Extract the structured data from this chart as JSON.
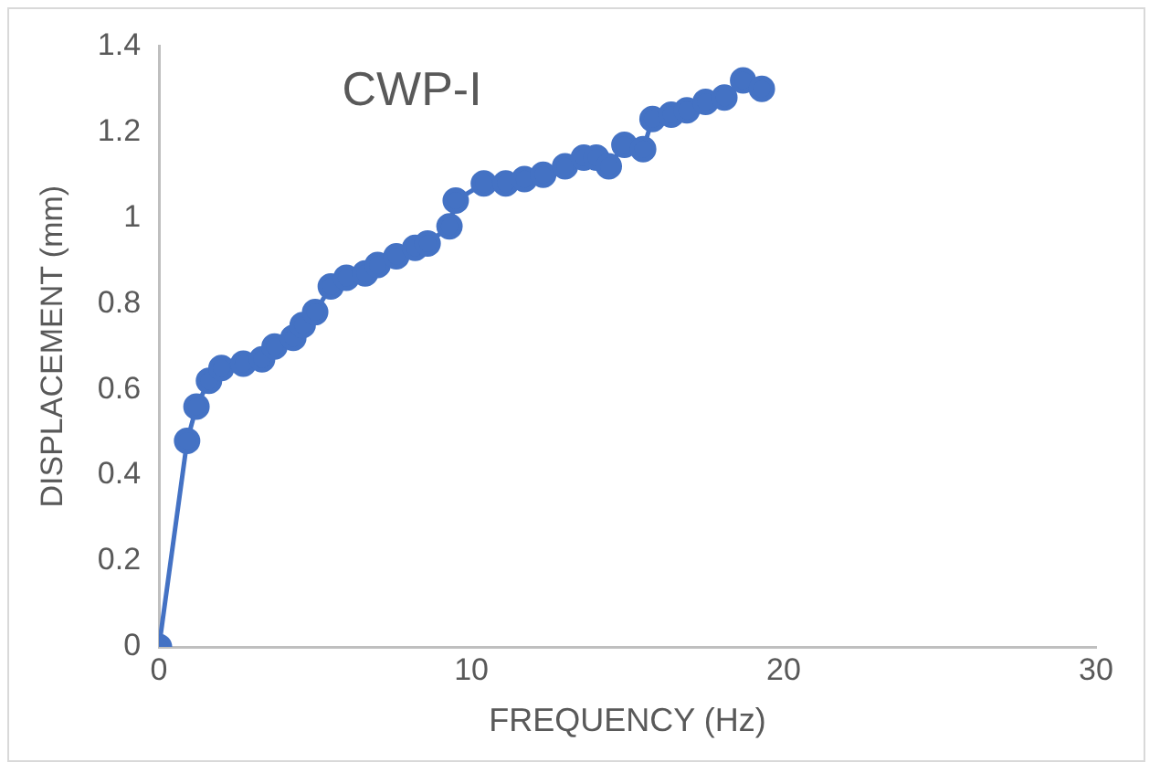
{
  "chart_data": {
    "type": "line",
    "title": "CWP-I",
    "xlabel": "FREQUENCY (Hz)",
    "ylabel": "DISPLACEMENT (mm)",
    "x": [
      0,
      0.9,
      1.2,
      1.6,
      2.0,
      2.7,
      3.3,
      3.7,
      4.3,
      4.6,
      5.0,
      5.5,
      6.0,
      6.6,
      7.0,
      7.6,
      8.2,
      8.6,
      9.3,
      9.5,
      10.4,
      11.1,
      11.7,
      12.3,
      13.0,
      13.6,
      14.0,
      14.4,
      14.9,
      15.5,
      15.8,
      16.4,
      16.9,
      17.5,
      18.1,
      18.7,
      19.3
    ],
    "series": [
      {
        "color": "#4472c4",
        "values": [
          0,
          0.48,
          0.56,
          0.62,
          0.65,
          0.66,
          0.67,
          0.7,
          0.72,
          0.75,
          0.78,
          0.84,
          0.86,
          0.87,
          0.89,
          0.91,
          0.93,
          0.94,
          0.98,
          1.04,
          1.08,
          1.08,
          1.09,
          1.1,
          1.12,
          1.14,
          1.14,
          1.12,
          1.17,
          1.16,
          1.23,
          1.24,
          1.25,
          1.27,
          1.28,
          1.32,
          1.3
        ]
      }
    ],
    "xlim": [
      0,
      30
    ],
    "xticks": [
      0,
      10,
      20,
      30
    ],
    "ylim": [
      0,
      1.4
    ],
    "yticks": [
      0,
      0.2,
      0.4,
      0.6,
      0.8,
      1,
      1.2,
      1.4
    ],
    "grid": false,
    "legend": false,
    "marker": "circle",
    "line_style": "solid"
  }
}
